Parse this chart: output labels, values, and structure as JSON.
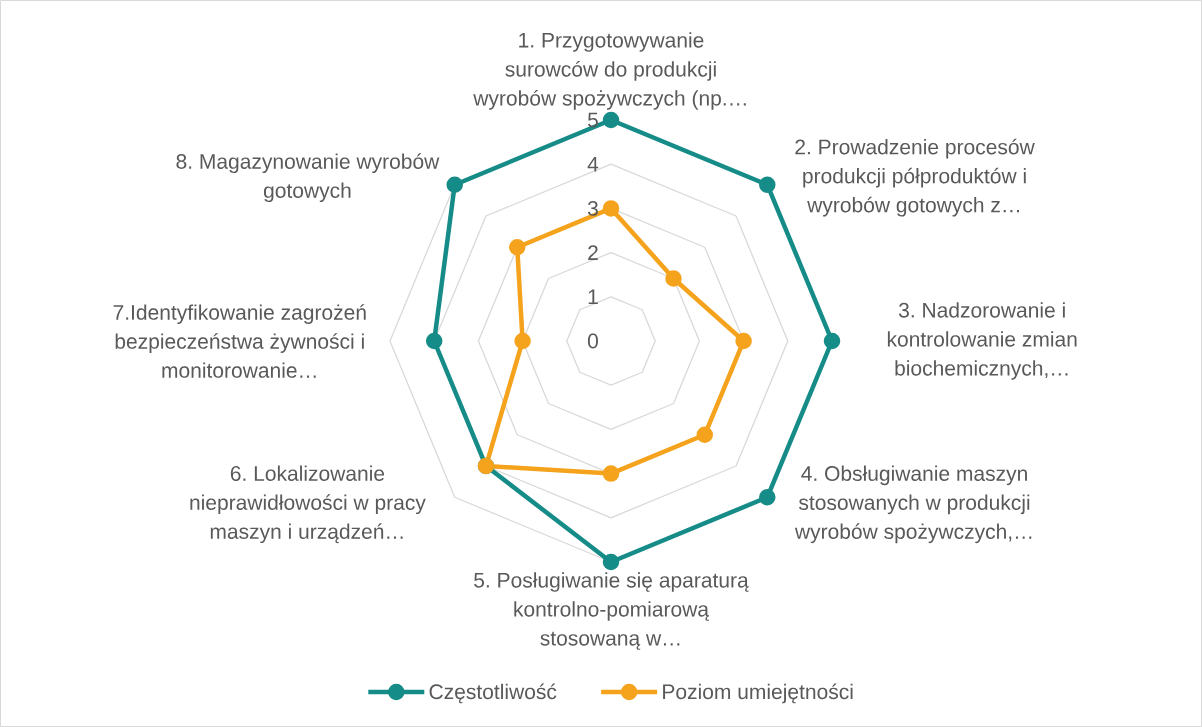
{
  "chart_data": {
    "type": "radar",
    "categories": [
      "1. Przygotowywanie surowców do produkcji wyrobów spożywczych (np.…",
      "2. Prowadzenie procesów produkcji półproduktów i wyrobów gotowych z…",
      "3. Nadzorowanie i kontrolowanie zmian biochemicznych,…",
      "4. Obsługiwanie maszyn stosowanych w produkcji wyrobów spożywczych,…",
      "5. Posługiwanie się aparaturą kontrolno-pomiarową stosowaną w…",
      "6. Lokalizowanie nieprawidłowości w pracy maszyn i urządzeń…",
      "7.Identyfikowanie zagrożeń bezpieczeństwa żywności i monitorowanie…",
      "8. Magazynowanie wyrobów gotowych"
    ],
    "series": [
      {
        "name": "Częstotliwość",
        "color": "#168C88",
        "values": [
          5,
          5,
          5,
          5,
          5,
          4,
          4,
          5
        ]
      },
      {
        "name": "Poziom umiejętności",
        "color": "#F5A21C",
        "values": [
          3,
          2,
          3,
          3,
          3,
          4,
          2,
          3
        ]
      }
    ],
    "ylim": [
      0,
      5
    ],
    "yticks": [
      0,
      1,
      2,
      3,
      4,
      5
    ],
    "grid": true,
    "legend": "bottom",
    "marker": "circle",
    "line_style": "solid"
  }
}
